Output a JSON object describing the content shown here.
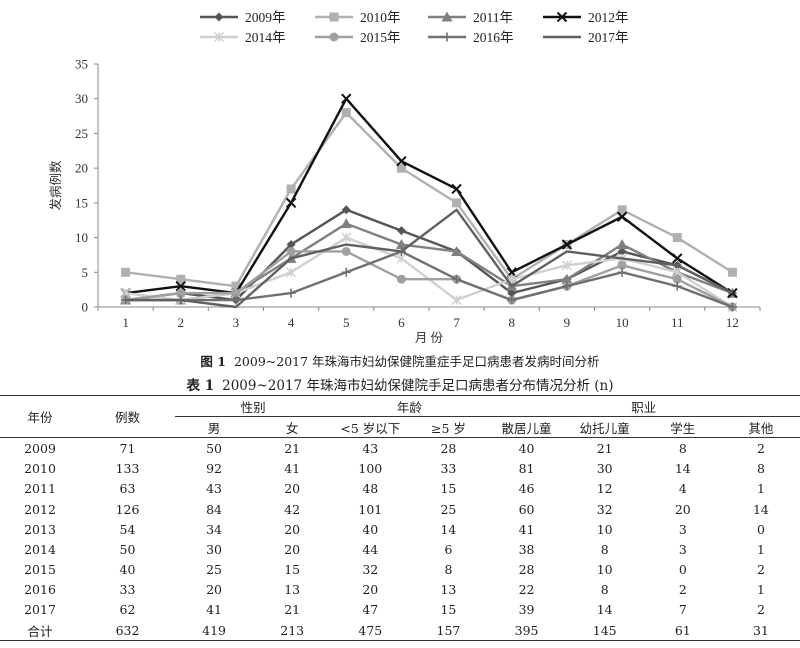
{
  "chart_data": {
    "type": "line",
    "ylabel": "发病例数",
    "xlabel": "月 份",
    "ylim": [
      0,
      35
    ],
    "yticks": [
      0,
      5,
      10,
      15,
      20,
      25,
      30,
      35
    ],
    "categories": [
      "1",
      "2",
      "3",
      "4",
      "5",
      "6",
      "7",
      "8",
      "9",
      "10",
      "11",
      "12"
    ],
    "legend_position": "top",
    "grid": false,
    "series": [
      {
        "name": "2009年",
        "values": [
          1,
          2,
          1,
          9,
          14,
          11,
          8,
          2,
          4,
          8,
          6,
          2
        ],
        "color": "#555555",
        "marker": "diamond"
      },
      {
        "name": "2010年",
        "values": [
          5,
          4,
          3,
          17,
          28,
          20,
          15,
          4,
          9,
          14,
          10,
          5
        ],
        "color": "#b0b0b0",
        "marker": "square"
      },
      {
        "name": "2011年",
        "values": [
          1,
          1,
          2,
          7,
          12,
          9,
          8,
          3,
          4,
          9,
          5,
          2
        ],
        "color": "#808080",
        "marker": "triangle"
      },
      {
        "name": "2012年",
        "values": [
          2,
          3,
          2,
          15,
          30,
          21,
          17,
          5,
          9,
          13,
          7,
          2
        ],
        "color": "#111111",
        "marker": "x"
      },
      {
        "name": "2014年",
        "values": [
          2,
          1,
          2,
          5,
          10,
          7,
          1,
          4,
          6,
          7,
          5,
          0
        ],
        "color": "#d0d0d0",
        "marker": "star"
      },
      {
        "name": "2015年",
        "values": [
          1,
          2,
          2,
          8,
          8,
          4,
          4,
          1,
          3,
          6,
          4,
          0
        ],
        "color": "#a0a0a0",
        "marker": "circle"
      },
      {
        "name": "2016年",
        "values": [
          1,
          1,
          1,
          2,
          5,
          8,
          4,
          1,
          3,
          5,
          3,
          0
        ],
        "color": "#707070",
        "marker": "plus"
      },
      {
        "name": "2017年",
        "values": [
          1,
          1,
          0,
          7,
          9,
          8,
          14,
          3,
          8,
          7,
          6,
          2
        ],
        "color": "#606060",
        "marker": "none"
      }
    ]
  },
  "figure_caption": {
    "number": "图 1",
    "text": "2009~2017 年珠海市妇幼保健院重症手足口病患者发病时间分析"
  },
  "table_caption": {
    "number": "表 1",
    "text": "2009~2017 年珠海市妇幼保健院手足口病患者分布情况分析 (n)"
  },
  "table": {
    "header": {
      "year": "年份",
      "cases": "例数",
      "gender": "性别",
      "age": "年龄",
      "occupation": "职业",
      "sub": [
        "男",
        "女",
        "<5 岁以下",
        "≥5 岁",
        "散居儿童",
        "幼托儿童",
        "学生",
        "其他"
      ]
    },
    "rows": [
      [
        "2009",
        "71",
        "50",
        "21",
        "43",
        "28",
        "40",
        "21",
        "8",
        "2"
      ],
      [
        "2010",
        "133",
        "92",
        "41",
        "100",
        "33",
        "81",
        "30",
        "14",
        "8"
      ],
      [
        "2011",
        "63",
        "43",
        "20",
        "48",
        "15",
        "46",
        "12",
        "4",
        "1"
      ],
      [
        "2012",
        "126",
        "84",
        "42",
        "101",
        "25",
        "60",
        "32",
        "20",
        "14"
      ],
      [
        "2013",
        "54",
        "34",
        "20",
        "40",
        "14",
        "41",
        "10",
        "3",
        "0"
      ],
      [
        "2014",
        "50",
        "30",
        "20",
        "44",
        "6",
        "38",
        "8",
        "3",
        "1"
      ],
      [
        "2015",
        "40",
        "25",
        "15",
        "32",
        "8",
        "28",
        "10",
        "0",
        "2"
      ],
      [
        "2016",
        "33",
        "20",
        "13",
        "20",
        "13",
        "22",
        "8",
        "2",
        "1"
      ],
      [
        "2017",
        "62",
        "41",
        "21",
        "47",
        "15",
        "39",
        "14",
        "7",
        "2"
      ],
      [
        "合计",
        "632",
        "419",
        "213",
        "475",
        "157",
        "395",
        "145",
        "61",
        "31"
      ]
    ]
  }
}
